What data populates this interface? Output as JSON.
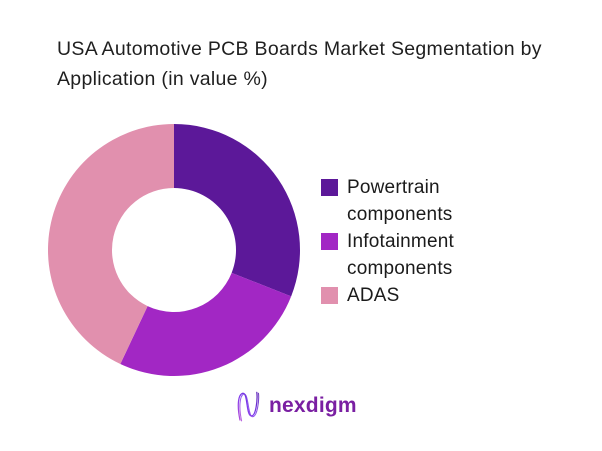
{
  "title": "USA Automotive PCB Boards Market Segmentation by Application (in value %)",
  "chart_data": {
    "type": "pie",
    "subtype": "donut",
    "title": "USA Automotive PCB Boards Market Segmentation by Application (in value %)",
    "categories": [
      "Powertrain components",
      "Infotainment components",
      "ADAS"
    ],
    "values": [
      31,
      26,
      43
    ],
    "unit": "%",
    "colors": [
      "#5c1899",
      "#a227c4",
      "#e190ae"
    ],
    "start_angle_deg": 0,
    "direction": "clockwise",
    "inner_radius_ratio": 0.49,
    "legend_position": "right",
    "data_labels": false,
    "background": "#ffffff"
  },
  "logo": {
    "brand": "nexdigm",
    "wordmark_color": "#7a1fa2"
  }
}
